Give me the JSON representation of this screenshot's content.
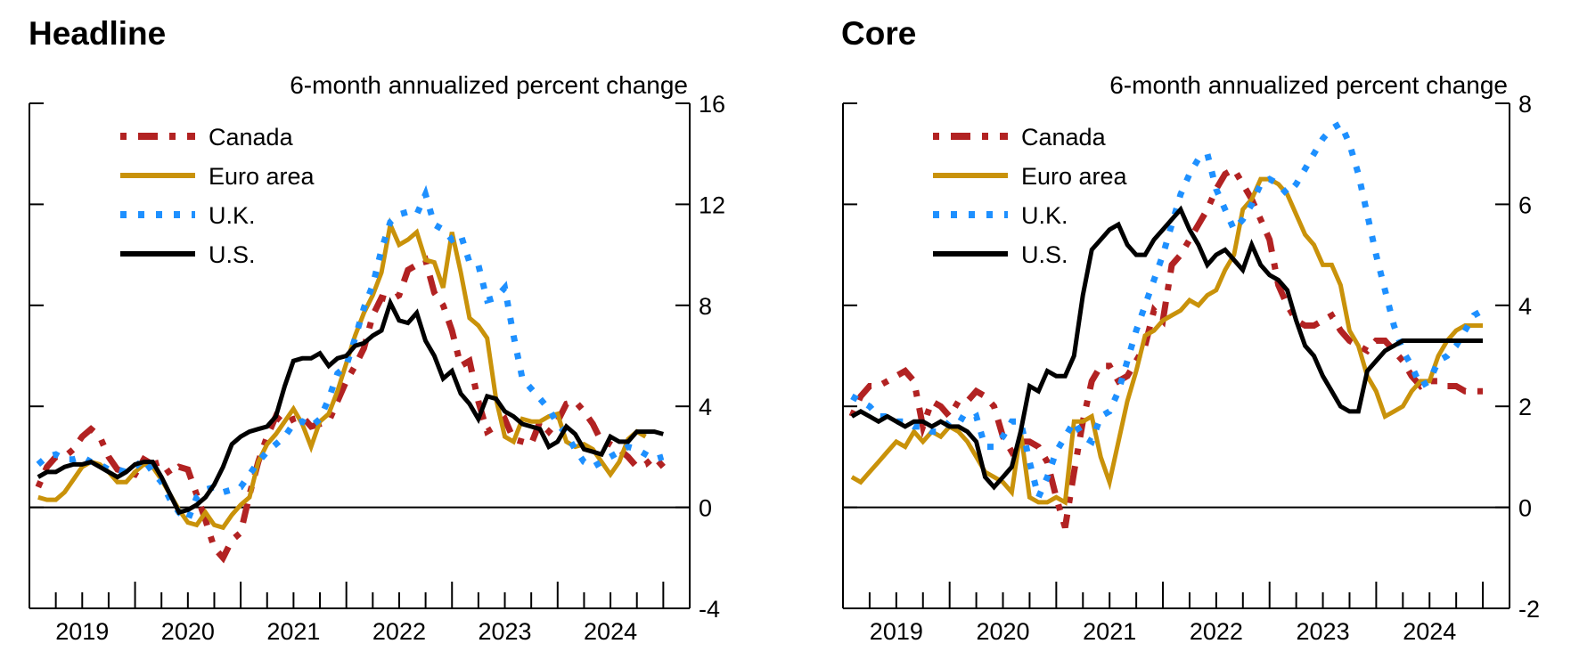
{
  "chart_data": [
    {
      "type": "line",
      "title": "Headline",
      "ylabel": "6-month annualized percent change",
      "xlabel": "",
      "xlim": [
        2018.5,
        2024.75
      ],
      "ylim": [
        -4,
        16
      ],
      "yticks": [
        -4,
        0,
        4,
        8,
        12,
        16
      ],
      "ytick_labels": [
        "-4",
        "0",
        "4",
        "8",
        "12",
        "16"
      ],
      "xtick_labels": [
        "2019",
        "2020",
        "2021",
        "2022",
        "2023",
        "2024"
      ],
      "xtick_years": [
        2019,
        2020,
        2021,
        2022,
        2023,
        2024
      ],
      "y_axis_side": "right",
      "zero_line": true,
      "grid": false,
      "legend": {
        "placement": "top-left",
        "entries": [
          "Canada",
          "Euro area",
          "U.K.",
          "U.S."
        ]
      },
      "series": [
        {
          "name": "Canada",
          "color": "#b22222",
          "style": "dash-dot",
          "x_start": 2018.583,
          "x_step": 0.08333,
          "values": [
            0.8,
            1.6,
            2.0,
            2.0,
            2.3,
            2.8,
            3.1,
            2.8,
            2.0,
            1.5,
            1.4,
            1.3,
            1.9,
            1.7,
            1.8,
            1.3,
            1.6,
            1.5,
            0.5,
            -0.5,
            -1.6,
            -2.0,
            -1.3,
            -1.0,
            0.5,
            1.8,
            2.8,
            3.6,
            3.3,
            3.5,
            3.6,
            3.2,
            3.3,
            3.4,
            4.2,
            5.0,
            5.6,
            6.3,
            7.6,
            8.3,
            8.2,
            8.4,
            9.4,
            9.6,
            9.8,
            8.5,
            8.0,
            7.0,
            5.6,
            5.8,
            4.2,
            3.0,
            3.2,
            3.5,
            2.7,
            2.6,
            2.5,
            3.4,
            3.0,
            3.4,
            4.1,
            4.2,
            3.8,
            3.3,
            2.6,
            2.5,
            2.3,
            2.0,
            1.6,
            1.7,
            2.0,
            1.6
          ]
        },
        {
          "name": "Euro area",
          "color": "#c9920a",
          "style": "solid",
          "x_start": 2018.583,
          "x_step": 0.08333,
          "values": [
            0.4,
            0.3,
            0.3,
            0.6,
            1.1,
            1.6,
            1.8,
            1.7,
            1.4,
            1.0,
            1.0,
            1.4,
            1.7,
            1.6,
            1.1,
            0.5,
            -0.1,
            -0.6,
            -0.7,
            -0.2,
            -0.7,
            -0.8,
            -0.3,
            0.1,
            0.4,
            1.8,
            2.5,
            2.9,
            3.4,
            3.9,
            3.3,
            2.4,
            3.4,
            3.7,
            4.6,
            5.7,
            6.8,
            7.7,
            8.4,
            9.3,
            11.2,
            10.4,
            10.6,
            10.9,
            9.8,
            9.7,
            8.7,
            10.9,
            9.3,
            7.5,
            7.2,
            6.7,
            4.3,
            2.8,
            2.6,
            3.5,
            3.4,
            3.4,
            3.6,
            3.7,
            2.6,
            2.4,
            2.5,
            2.3,
            1.8,
            1.3,
            1.8,
            2.7,
            3.0,
            2.8
          ]
        },
        {
          "name": "U.K.",
          "color": "#1e90ff",
          "style": "dotted",
          "x_start": 2018.583,
          "x_step": 0.08333,
          "values": [
            1.7,
            2.0,
            2.1,
            1.9,
            1.9,
            2.0,
            1.8,
            1.7,
            1.5,
            1.5,
            1.4,
            1.6,
            1.9,
            1.4,
            1.0,
            0.3,
            -0.2,
            -0.5,
            0.4,
            0.7,
            0.8,
            0.6,
            0.7,
            0.8,
            1.3,
            1.8,
            2.2,
            2.5,
            2.8,
            3.3,
            3.4,
            3.2,
            3.5,
            4.3,
            5.3,
            5.6,
            6.7,
            7.9,
            8.8,
            10.2,
            11.3,
            11.6,
            11.7,
            11.6,
            12.4,
            11.2,
            11.0,
            10.6,
            10.8,
            9.7,
            9.6,
            8.2,
            8.3,
            8.7,
            6.8,
            5.1,
            4.7,
            4.3,
            3.9,
            3.3,
            2.9,
            2.3,
            1.8,
            1.6,
            1.8,
            2.0,
            2.2,
            2.4,
            2.3,
            2.1,
            1.9,
            2.0
          ]
        },
        {
          "name": "U.S.",
          "color": "#000000",
          "style": "solid",
          "x_start": 2018.583,
          "x_step": 0.08333,
          "values": [
            1.2,
            1.4,
            1.4,
            1.6,
            1.7,
            1.7,
            1.8,
            1.6,
            1.4,
            1.2,
            1.4,
            1.7,
            1.8,
            1.8,
            1.2,
            0.5,
            -0.2,
            -0.1,
            0.1,
            0.4,
            0.9,
            1.6,
            2.5,
            2.8,
            3.0,
            3.1,
            3.2,
            3.6,
            4.8,
            5.8,
            5.9,
            5.9,
            6.1,
            5.6,
            5.9,
            6.0,
            6.4,
            6.5,
            6.8,
            7.0,
            8.1,
            7.4,
            7.3,
            7.7,
            6.6,
            6.0,
            5.1,
            5.4,
            4.5,
            4.1,
            3.5,
            4.4,
            4.3,
            3.8,
            3.6,
            3.3,
            3.2,
            3.1,
            2.4,
            2.6,
            3.2,
            2.9,
            2.3,
            2.2,
            2.1,
            2.8,
            2.6,
            2.6,
            3.0,
            3.0,
            3.0,
            2.9
          ]
        }
      ]
    },
    {
      "type": "line",
      "title": "Core",
      "ylabel": "6-month annualized percent change",
      "xlabel": "",
      "xlim": [
        2018.5,
        2024.75
      ],
      "ylim": [
        -2,
        8
      ],
      "yticks": [
        -2,
        0,
        2,
        4,
        6,
        8
      ],
      "ytick_labels": [
        "-2",
        "0",
        "2",
        "4",
        "6",
        "8"
      ],
      "xtick_labels": [
        "2019",
        "2020",
        "2021",
        "2022",
        "2023",
        "2024"
      ],
      "xtick_years": [
        2019,
        2020,
        2021,
        2022,
        2023,
        2024
      ],
      "y_axis_side": "right",
      "zero_line": true,
      "grid": false,
      "legend": {
        "placement": "top-left",
        "entries": [
          "Canada",
          "Euro area",
          "U.K.",
          "U.S."
        ]
      },
      "series": [
        {
          "name": "Canada",
          "color": "#b22222",
          "style": "dash-dot",
          "x_start": 2018.583,
          "x_step": 0.08333,
          "values": [
            1.8,
            2.2,
            2.4,
            2.4,
            2.5,
            2.6,
            2.7,
            2.5,
            1.6,
            2.1,
            2.0,
            1.8,
            2.1,
            2.1,
            2.3,
            2.2,
            2.0,
            1.4,
            1.1,
            1.3,
            1.3,
            1.2,
            0.9,
            0.2,
            -0.4,
            0.7,
            1.7,
            2.5,
            2.8,
            2.8,
            2.5,
            2.6,
            2.9,
            3.2,
            3.9,
            3.7,
            4.8,
            5.0,
            5.3,
            5.6,
            5.9,
            6.3,
            6.6,
            6.7,
            6.4,
            6.1,
            5.7,
            5.3,
            4.4,
            4.0,
            3.7,
            3.6,
            3.6,
            3.7,
            3.8,
            3.5,
            3.3,
            3.2,
            3.1,
            3.3,
            3.3,
            3.1,
            2.9,
            2.6,
            2.4,
            2.5,
            2.5,
            2.4,
            2.4,
            2.3,
            2.3,
            2.3
          ]
        },
        {
          "name": "Euro area",
          "color": "#c9920a",
          "style": "solid",
          "x_start": 2018.583,
          "x_step": 0.08333,
          "values": [
            0.6,
            0.5,
            0.7,
            0.9,
            1.1,
            1.3,
            1.2,
            1.5,
            1.3,
            1.5,
            1.4,
            1.6,
            1.5,
            1.3,
            1.0,
            0.7,
            0.6,
            0.5,
            0.3,
            1.5,
            0.2,
            0.1,
            0.1,
            0.2,
            0.1,
            1.7,
            1.7,
            1.8,
            1.0,
            0.5,
            1.3,
            2.1,
            2.7,
            3.4,
            3.5,
            3.7,
            3.8,
            3.9,
            4.1,
            4.0,
            4.2,
            4.3,
            4.7,
            5.0,
            5.9,
            6.1,
            6.5,
            6.5,
            6.4,
            6.2,
            5.8,
            5.4,
            5.2,
            4.8,
            4.8,
            4.4,
            3.5,
            3.2,
            2.6,
            2.3,
            1.8,
            1.9,
            2.0,
            2.3,
            2.5,
            2.5,
            3.0,
            3.3,
            3.5,
            3.6,
            3.6,
            3.6
          ]
        },
        {
          "name": "U.K.",
          "color": "#1e90ff",
          "style": "dotted",
          "x_start": 2018.583,
          "x_step": 0.08333,
          "values": [
            2.2,
            2.1,
            2.0,
            1.8,
            1.8,
            1.7,
            1.7,
            1.6,
            1.6,
            1.5,
            1.5,
            1.7,
            1.8,
            1.7,
            1.8,
            1.2,
            1.2,
            1.4,
            1.7,
            1.7,
            0.9,
            0.2,
            0.6,
            1.1,
            1.4,
            1.7,
            1.4,
            1.3,
            1.8,
            1.9,
            2.3,
            2.9,
            3.5,
            4.0,
            4.5,
            5.0,
            5.6,
            6.2,
            6.6,
            6.9,
            7.0,
            6.3,
            5.9,
            5.5,
            5.7,
            6.0,
            6.4,
            6.5,
            6.4,
            6.2,
            6.4,
            6.7,
            7.0,
            7.3,
            7.5,
            7.6,
            7.2,
            6.6,
            5.8,
            5.0,
            4.3,
            3.6,
            3.1,
            2.8,
            2.4,
            2.5,
            2.9,
            3.0,
            3.2,
            3.5,
            3.8,
            3.9
          ]
        },
        {
          "name": "U.S.",
          "color": "#000000",
          "style": "solid",
          "x_start": 2018.583,
          "x_step": 0.08333,
          "values": [
            1.8,
            1.9,
            1.8,
            1.7,
            1.8,
            1.7,
            1.6,
            1.7,
            1.7,
            1.6,
            1.7,
            1.6,
            1.6,
            1.5,
            1.3,
            0.6,
            0.4,
            0.6,
            0.8,
            1.5,
            2.4,
            2.3,
            2.7,
            2.6,
            2.6,
            3.0,
            4.2,
            5.1,
            5.3,
            5.5,
            5.6,
            5.2,
            5.0,
            5.0,
            5.3,
            5.5,
            5.7,
            5.9,
            5.5,
            5.2,
            4.8,
            5.0,
            5.1,
            4.9,
            4.7,
            5.2,
            4.8,
            4.6,
            4.5,
            4.3,
            3.7,
            3.2,
            3.0,
            2.6,
            2.3,
            2.0,
            1.9,
            1.9,
            2.7,
            2.9,
            3.1,
            3.2,
            3.3,
            3.3,
            3.3,
            3.3,
            3.3,
            3.3,
            3.3,
            3.3,
            3.3,
            3.3
          ]
        }
      ]
    }
  ]
}
